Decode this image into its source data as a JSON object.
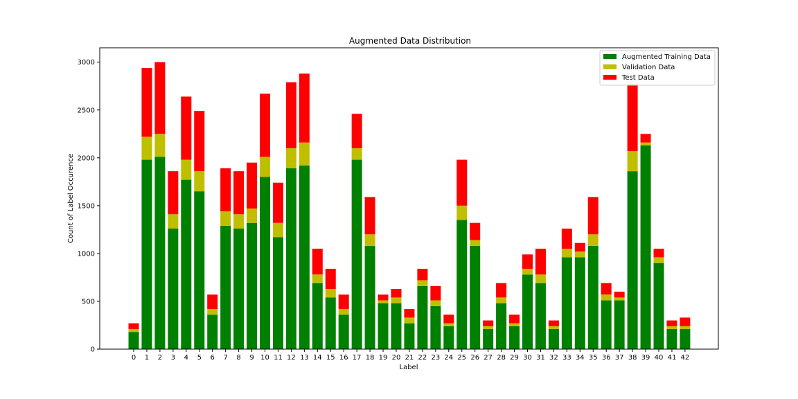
{
  "chart_data": {
    "type": "bar",
    "stacked": true,
    "title": "Augmented Data Distribution",
    "xlabel": "Label",
    "ylabel": "Count of Label Occurence",
    "ylim": [
      0,
      3150
    ],
    "yticks": [
      0,
      500,
      1000,
      1500,
      2000,
      2500,
      3000
    ],
    "grid": false,
    "legend_position": "top-right",
    "categories": [
      "0",
      "1",
      "2",
      "3",
      "4",
      "5",
      "6",
      "7",
      "8",
      "9",
      "10",
      "11",
      "12",
      "13",
      "14",
      "15",
      "16",
      "17",
      "18",
      "19",
      "20",
      "21",
      "22",
      "23",
      "24",
      "25",
      "26",
      "27",
      "28",
      "29",
      "30",
      "31",
      "32",
      "33",
      "34",
      "35",
      "36",
      "37",
      "38",
      "39",
      "40",
      "41",
      "42"
    ],
    "series": [
      {
        "name": "Augmented Training Data",
        "color": "#008000",
        "values": [
          180,
          1980,
          2010,
          1260,
          1770,
          1650,
          360,
          1290,
          1260,
          1320,
          1800,
          1170,
          1890,
          1920,
          690,
          540,
          360,
          1980,
          1080,
          480,
          480,
          270,
          660,
          450,
          240,
          1350,
          1080,
          210,
          480,
          240,
          780,
          690,
          210,
          960,
          960,
          1080,
          510,
          510,
          1860,
          2130,
          900,
          210,
          210
        ]
      },
      {
        "name": "Validation Data",
        "color": "#bfbf00",
        "values": [
          30,
          240,
          240,
          150,
          210,
          210,
          60,
          150,
          150,
          150,
          210,
          150,
          210,
          240,
          90,
          90,
          60,
          120,
          120,
          30,
          60,
          60,
          60,
          60,
          30,
          150,
          60,
          30,
          60,
          30,
          60,
          90,
          30,
          90,
          60,
          120,
          60,
          30,
          210,
          30,
          60,
          30,
          30
        ]
      },
      {
        "name": "Test Data",
        "color": "#ff0000",
        "values": [
          60,
          720,
          750,
          450,
          660,
          630,
          150,
          450,
          450,
          480,
          660,
          420,
          690,
          720,
          270,
          210,
          150,
          360,
          390,
          60,
          90,
          90,
          120,
          150,
          90,
          480,
          180,
          60,
          150,
          90,
          150,
          270,
          60,
          210,
          90,
          390,
          120,
          60,
          700,
          90,
          90,
          60,
          90
        ]
      }
    ]
  }
}
